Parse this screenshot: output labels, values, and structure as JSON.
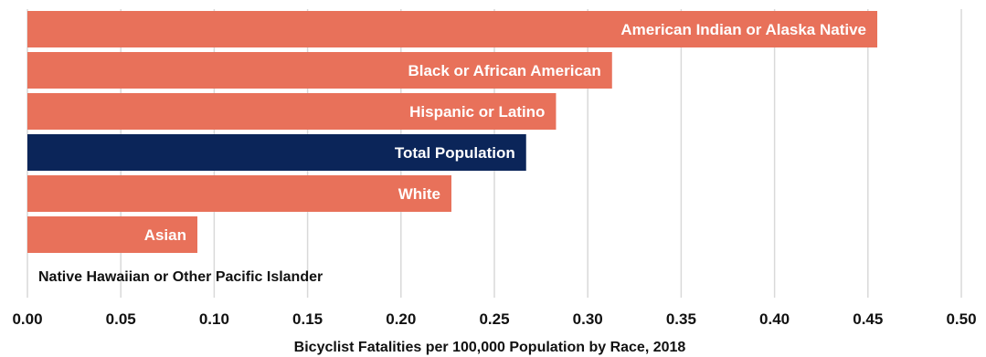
{
  "chart_data": {
    "type": "bar",
    "orientation": "horizontal",
    "title": "",
    "xlabel": "Bicyclist Fatalities per 100,000 Population by Race, 2018",
    "ylabel": "",
    "xlim": [
      0,
      0.5
    ],
    "xticks": [
      0.0,
      0.05,
      0.1,
      0.15,
      0.2,
      0.25,
      0.3,
      0.35,
      0.4,
      0.45,
      0.5
    ],
    "xtick_labels": [
      "0.00",
      "0.05",
      "0.10",
      "0.15",
      "0.20",
      "0.25",
      "0.30",
      "0.35",
      "0.40",
      "0.45",
      "0.50"
    ],
    "grid": "vertical",
    "legend": "none",
    "categories": [
      "American Indian or Alaska Native",
      "Black or African American",
      "Hispanic or Latino",
      "Total Population",
      "White",
      "Asian",
      "Native Hawaiian or Other Pacific Islander"
    ],
    "values": [
      0.455,
      0.313,
      0.283,
      0.267,
      0.227,
      0.091,
      0.0
    ],
    "colors": {
      "default_bar": "#E8715A",
      "highlight_bar": "#0B2559",
      "label_on_bar": "#FFFFFF",
      "label_outside": "#111111",
      "grid": "#D9D9D9"
    },
    "highlight_category": "Total Population"
  }
}
